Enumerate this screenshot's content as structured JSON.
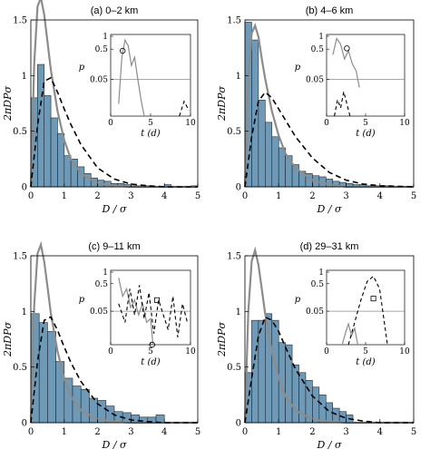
{
  "chart_data": [
    {
      "type": "bar",
      "title": "(a) 0–2  km",
      "xlabel": "D / σ",
      "ylabel": "2πDPσ",
      "xlim": [
        0,
        5
      ],
      "ylim": [
        0,
        1.5
      ],
      "xticks": [
        "0",
        "1",
        "2",
        "3",
        "4",
        "5"
      ],
      "yticks": [
        "0",
        "0.5",
        "1",
        "1.5"
      ],
      "bin_width": 0.2,
      "histogram": [
        0.8,
        1.1,
        0.82,
        0.62,
        0.48,
        0.28,
        0.25,
        0.18,
        0.12,
        0.08,
        0.06,
        0.05,
        0.03,
        0.03,
        0.02,
        0.01,
        0.01,
        0.01,
        0.0,
        0.0,
        0.02,
        0.0,
        0.0,
        0.0,
        0.01
      ],
      "series": [
        {
          "name": "",
          "style": "solid grey",
          "x": [
            0,
            0.1,
            0.2,
            0.3,
            0.4,
            0.5,
            0.6,
            0.8,
            1.0,
            1.2,
            1.5,
            2.0,
            2.5,
            3.0,
            4.0,
            5.0
          ],
          "y": [
            0,
            1.1,
            1.62,
            1.7,
            1.55,
            1.3,
            1.05,
            0.68,
            0.42,
            0.25,
            0.12,
            0.03,
            0.01,
            0.0,
            0.0,
            0.0
          ]
        },
        {
          "name": "",
          "style": "dashed black",
          "x": [
            0,
            0.2,
            0.4,
            0.6,
            0.8,
            1.0,
            1.2,
            1.5,
            2.0,
            2.5,
            3.0,
            3.5,
            4.0,
            5.0
          ],
          "y": [
            0,
            0.55,
            0.95,
            0.98,
            0.85,
            0.7,
            0.56,
            0.38,
            0.17,
            0.07,
            0.025,
            0.01,
            0.0,
            0.0
          ]
        }
      ],
      "inset": {
        "xlabel": "t (d)",
        "ylabel": "p",
        "xlim": [
          0,
          10
        ],
        "ylim": [
          0,
          1
        ],
        "xticks": [
          "0",
          "5",
          "10"
        ],
        "yticks": [
          "0.05",
          "0.5",
          "1"
        ],
        "reference_line": 0.05,
        "series": [
          {
            "name": "",
            "style": "solid grey",
            "x": [
              1,
              1.4,
              1.8,
              2.2,
              2.6,
              3.0,
              3.4,
              3.8,
              4.2
            ],
            "y": [
              0.15,
              0.72,
              0.93,
              0.86,
              0.62,
              0.72,
              0.45,
              0.2,
              0.0
            ]
          },
          {
            "name": "",
            "style": "dashed black",
            "x": [
              8.6,
              9.2,
              9.8
            ],
            "y": [
              0.0,
              0.18,
              0.07
            ]
          }
        ],
        "marker": {
          "shape": "circle",
          "x": 1.5,
          "y": 0.8
        }
      }
    },
    {
      "type": "bar",
      "title": "(b) 4–6  km",
      "xlabel": "D / σ",
      "ylabel": "2πDPσ",
      "xlim": [
        0,
        5
      ],
      "ylim": [
        0,
        1.5
      ],
      "xticks": [
        "0",
        "1",
        "2",
        "3",
        "4",
        "5"
      ],
      "yticks": [
        "0",
        "0.5",
        "1",
        "1.5"
      ],
      "bin_width": 0.2,
      "histogram": [
        1.48,
        1.32,
        0.78,
        0.58,
        0.45,
        0.35,
        0.28,
        0.2,
        0.14,
        0.12,
        0.1,
        0.09,
        0.07,
        0.05,
        0.04,
        0.03,
        0.02,
        0.02,
        0.01,
        0.01,
        0.01,
        0.01
      ],
      "series": [
        {
          "name": "",
          "style": "solid grey",
          "x": [
            0,
            0.1,
            0.2,
            0.3,
            0.4,
            0.5,
            0.6,
            0.8,
            1.0,
            1.2,
            1.5,
            2.0,
            2.5,
            3.0,
            4.0,
            5.0
          ],
          "y": [
            0,
            0.95,
            1.38,
            1.45,
            1.35,
            1.15,
            0.97,
            0.68,
            0.46,
            0.3,
            0.17,
            0.06,
            0.02,
            0.0,
            0.0,
            0.0
          ]
        },
        {
          "name": "",
          "style": "dashed black",
          "x": [
            0,
            0.2,
            0.4,
            0.6,
            0.8,
            1.0,
            1.2,
            1.5,
            2.0,
            2.5,
            3.0,
            3.5,
            4.0,
            5.0
          ],
          "y": [
            0,
            0.45,
            0.77,
            0.85,
            0.8,
            0.7,
            0.6,
            0.45,
            0.26,
            0.13,
            0.06,
            0.025,
            0.01,
            0.0
          ]
        }
      ],
      "inset": {
        "xlabel": "t (d)",
        "ylabel": "p",
        "xlim": [
          0,
          10
        ],
        "ylim": [
          0,
          1
        ],
        "xticks": [
          "0",
          "5",
          "10"
        ],
        "yticks": [
          "0.05",
          "0.5",
          "1"
        ],
        "reference_line": 0.05,
        "series": [
          {
            "name": "",
            "style": "solid grey",
            "x": [
              0.8,
              1.3,
              1.8,
              2.3,
              2.8,
              3.3,
              3.8,
              4.2
            ],
            "y": [
              0.75,
              0.95,
              0.88,
              0.7,
              0.8,
              0.64,
              0.55,
              0.35
            ]
          },
          {
            "name": "",
            "style": "dashed black",
            "x": [
              1.0,
              1.4,
              1.8,
              2.2,
              2.6,
              3.0
            ],
            "y": [
              0.0,
              0.2,
              0.1,
              0.3,
              0.15,
              0.0
            ]
          }
        ],
        "marker": {
          "shape": "circle",
          "x": 2.6,
          "y": 0.83
        }
      }
    },
    {
      "type": "bar",
      "title": "(c) 9–11  km",
      "xlabel": "D / σ",
      "ylabel": "2πDPσ",
      "xlim": [
        0,
        5
      ],
      "ylim": [
        0,
        1.5
      ],
      "xticks": [
        "0",
        "1",
        "2",
        "3",
        "4",
        "5"
      ],
      "yticks": [
        "0",
        "0.5",
        "1",
        "1.5"
      ],
      "bin_width": 0.25,
      "histogram": [
        0.98,
        0.9,
        0.82,
        0.55,
        0.4,
        0.33,
        0.3,
        0.22,
        0.2,
        0.15,
        0.1,
        0.09,
        0.07,
        0.05,
        0.05,
        0.07
      ],
      "series": [
        {
          "name": "",
          "style": "solid grey",
          "x": [
            0,
            0.1,
            0.2,
            0.3,
            0.4,
            0.5,
            0.6,
            0.8,
            1.0,
            1.2,
            1.5,
            2.0,
            2.5,
            3.0,
            4.0,
            5.0
          ],
          "y": [
            0,
            1.05,
            1.52,
            1.6,
            1.45,
            1.22,
            0.98,
            0.64,
            0.4,
            0.24,
            0.11,
            0.03,
            0.01,
            0.0,
            0.0,
            0.0
          ]
        },
        {
          "name": "",
          "style": "dashed black",
          "x": [
            0,
            0.2,
            0.4,
            0.6,
            0.8,
            1.0,
            1.2,
            1.5,
            2.0,
            2.5,
            3.0,
            3.5,
            4.0,
            5.0
          ],
          "y": [
            0,
            0.55,
            0.92,
            0.95,
            0.83,
            0.68,
            0.54,
            0.37,
            0.17,
            0.07,
            0.025,
            0.01,
            0.0,
            0.0
          ]
        }
      ],
      "inset": {
        "xlabel": "t (d)",
        "ylabel": "p",
        "xlim": [
          0,
          10
        ],
        "ylim": [
          0,
          1
        ],
        "xticks": [
          "0",
          "5",
          "10"
        ],
        "yticks": [
          "0.05",
          "0.5",
          "1"
        ],
        "reference_line": 0.05,
        "series": [
          {
            "name": "",
            "style": "solid grey",
            "x": [
              1.0,
              1.5,
              2.0,
              2.5,
              3.0,
              3.5,
              4.0,
              4.5,
              5.0,
              5.3
            ],
            "y": [
              0.9,
              0.65,
              0.75,
              0.5,
              0.6,
              0.4,
              0.55,
              0.3,
              0.35,
              0.0
            ]
          },
          {
            "name": "",
            "style": "dashed black",
            "x": [
              1.0,
              1.8,
              2.4,
              3.0,
              3.6,
              4.2,
              4.8,
              5.4,
              6.0,
              6.6,
              7.2,
              7.8,
              8.4,
              9.0,
              9.6
            ],
            "y": [
              0.55,
              0.3,
              0.75,
              0.4,
              0.8,
              0.35,
              0.7,
              0.15,
              0.6,
              0.4,
              0.2,
              0.65,
              0.1,
              0.55,
              0.3
            ]
          }
        ],
        "marker": {
          "shape": "square",
          "x": 5.8,
          "y": 0.6
        },
        "marker2": {
          "shape": "circle",
          "x": 5.2,
          "y": 0.0
        }
      }
    },
    {
      "type": "bar",
      "title": "(d) 29–31  km",
      "xlabel": "D / σ",
      "ylabel": "2πDPσ",
      "xlim": [
        0,
        5
      ],
      "ylim": [
        0,
        1.5
      ],
      "xticks": [
        "0",
        "1",
        "2",
        "3",
        "4",
        "5"
      ],
      "yticks": [
        "0",
        "0.5",
        "1",
        "1.5"
      ],
      "bin_width": 0.2,
      "histogram": [
        0.45,
        0.92,
        0.92,
        0.98,
        0.92,
        0.72,
        0.7,
        0.52,
        0.45,
        0.38,
        0.32,
        0.25,
        0.18,
        0.13,
        0.1,
        0.07
      ],
      "series": [
        {
          "name": "",
          "style": "solid grey",
          "x": [
            0,
            0.1,
            0.2,
            0.3,
            0.4,
            0.5,
            0.6,
            0.8,
            1.0,
            1.2,
            1.5,
            2.0,
            2.5,
            3.0,
            4.0,
            5.0
          ],
          "y": [
            0,
            1.0,
            1.45,
            1.55,
            1.42,
            1.2,
            0.98,
            0.64,
            0.4,
            0.24,
            0.11,
            0.03,
            0.01,
            0.0,
            0.0,
            0.0
          ]
        },
        {
          "name": "",
          "style": "dashed black",
          "x": [
            0,
            0.2,
            0.4,
            0.6,
            0.8,
            1.0,
            1.2,
            1.5,
            2.0,
            2.5,
            3.0,
            3.5,
            4.0,
            5.0
          ],
          "y": [
            0,
            0.4,
            0.78,
            0.95,
            0.92,
            0.82,
            0.68,
            0.48,
            0.24,
            0.1,
            0.04,
            0.015,
            0.0,
            0.0
          ]
        }
      ],
      "inset": {
        "xlabel": "t (d)",
        "ylabel": "p",
        "xlim": [
          0,
          10
        ],
        "ylim": [
          0,
          1
        ],
        "xticks": [
          "0",
          "5",
          "10"
        ],
        "yticks": [
          "0.05",
          "0.5",
          "1"
        ],
        "reference_line": 0.05,
        "series": [
          {
            "name": "",
            "style": "solid grey",
            "x": [
              2.0,
              2.4,
              2.8,
              3.2,
              3.6,
              4.0
            ],
            "y": [
              0.0,
              0.15,
              0.28,
              0.12,
              0.22,
              0.0
            ]
          },
          {
            "name": "",
            "style": "dashed black",
            "x": [
              2.8,
              3.6,
              4.4,
              5.2,
              6.0,
              6.8,
              7.4,
              7.8
            ],
            "y": [
              0.0,
              0.3,
              0.6,
              0.85,
              0.92,
              0.75,
              0.3,
              0.0
            ]
          }
        ],
        "marker": {
          "shape": "square",
          "x": 6.0,
          "y": 0.62
        }
      }
    }
  ]
}
